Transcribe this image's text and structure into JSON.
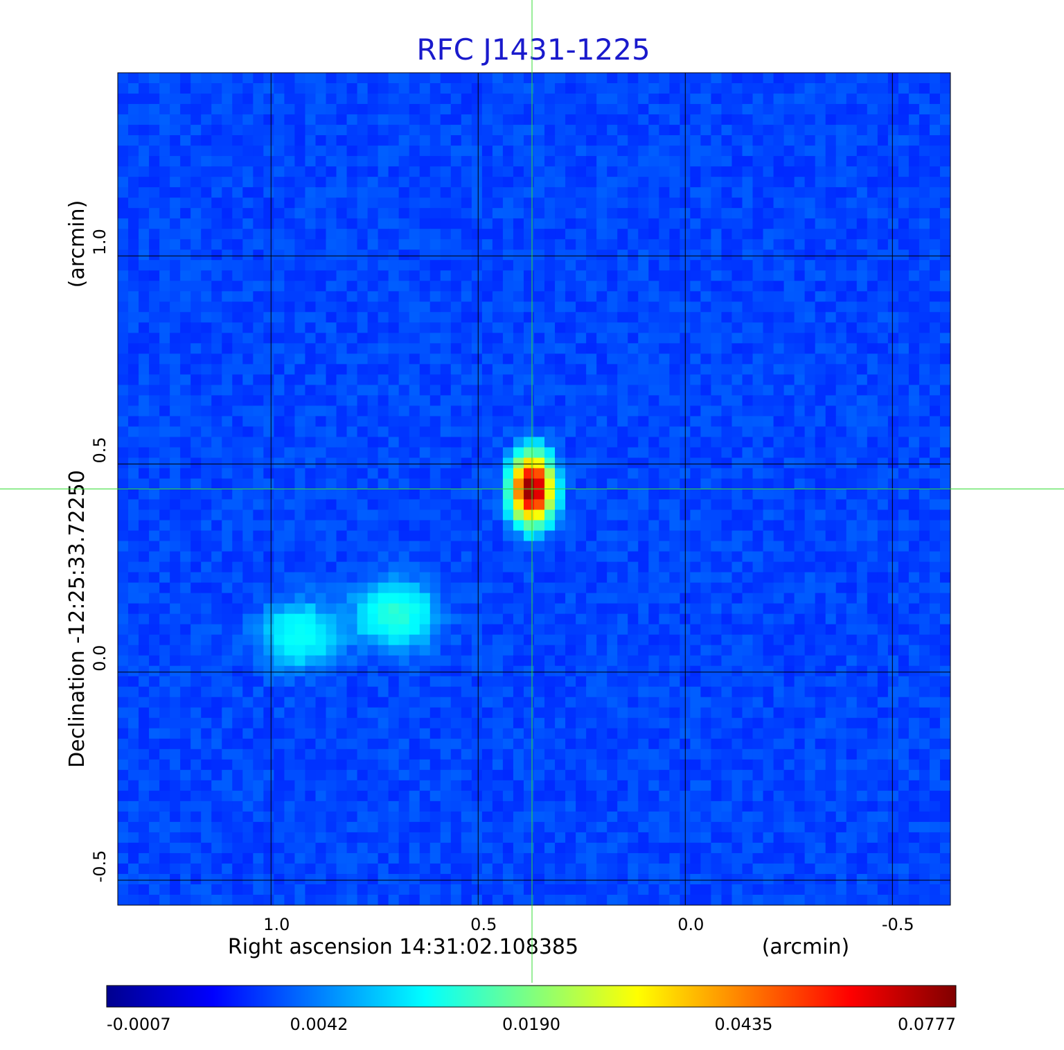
{
  "chart_data": {
    "type": "heatmap",
    "title": "RFC J1431-1225",
    "xlabel": "Right ascension  14:31:02.108385",
    "xunit": "(arcmin)",
    "ylabel": "Declination  -12:25:33.72250",
    "yunit": "(arcmin)",
    "xlim": [
      1.37,
      -0.64
    ],
    "ylim": [
      -0.56,
      1.44
    ],
    "x_ticks": [
      1.0,
      0.5,
      0.0,
      -0.5
    ],
    "x_tick_labels": [
      "1.0",
      "0.5",
      "0.0",
      "-0.5"
    ],
    "y_ticks": [
      -0.5,
      0.0,
      0.5,
      1.0
    ],
    "y_tick_labels": [
      "-0.5",
      "0.0",
      "0.5",
      "1.0"
    ],
    "grid": true,
    "colormap": "jet",
    "colorbar": {
      "placement": "bottom",
      "ticks": [
        -0.0007,
        0.0042,
        0.019,
        0.0435,
        0.0777
      ],
      "tick_labels": [
        "-0.0007",
        "0.0042",
        "0.0190",
        "0.0435",
        "0.0777"
      ]
    },
    "sources": [
      {
        "x": 0.37,
        "y": 0.44,
        "peak": 0.0777
      },
      {
        "x": 0.7,
        "y": 0.14,
        "peak": 0.008
      },
      {
        "x": 0.93,
        "y": 0.09,
        "peak": 0.006
      }
    ],
    "crosshair": {
      "x": 0.37,
      "y": 0.44,
      "color": "#33dd33"
    },
    "colors": {
      "title": "#1a1acc",
      "grid": "#000000",
      "crosshair": "#33dd33"
    }
  }
}
